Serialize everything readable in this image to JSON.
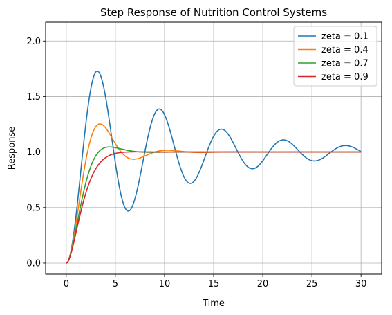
{
  "chart_data": {
    "type": "line",
    "title": "Step Response of Nutrition Control Systems",
    "xlabel": "Time",
    "ylabel": "Response",
    "xlim": [
      -2.1,
      32.1
    ],
    "ylim": [
      -0.1,
      2.17
    ],
    "xticks": [
      0,
      5,
      10,
      15,
      20,
      25,
      30
    ],
    "xtick_labels": [
      "0",
      "5",
      "10",
      "15",
      "20",
      "25",
      "30"
    ],
    "yticks": [
      0.0,
      0.5,
      1.0,
      1.5,
      2.0
    ],
    "ytick_labels": [
      "0.0",
      "0.5",
      "1.0",
      "1.5",
      "2.0"
    ],
    "grid": true,
    "legend_position": "top-right",
    "omega_n": 1.0,
    "t_range": [
      0,
      30
    ],
    "series": [
      {
        "name": "zeta = 0.1",
        "zeta": 0.1,
        "color": "#1f77b4"
      },
      {
        "name": "zeta = 0.4",
        "zeta": 0.4,
        "color": "#ff7f0e"
      },
      {
        "name": "zeta = 0.7",
        "zeta": 0.7,
        "color": "#2ca02c"
      },
      {
        "name": "zeta = 0.9",
        "zeta": 0.9,
        "color": "#d62728"
      }
    ]
  }
}
